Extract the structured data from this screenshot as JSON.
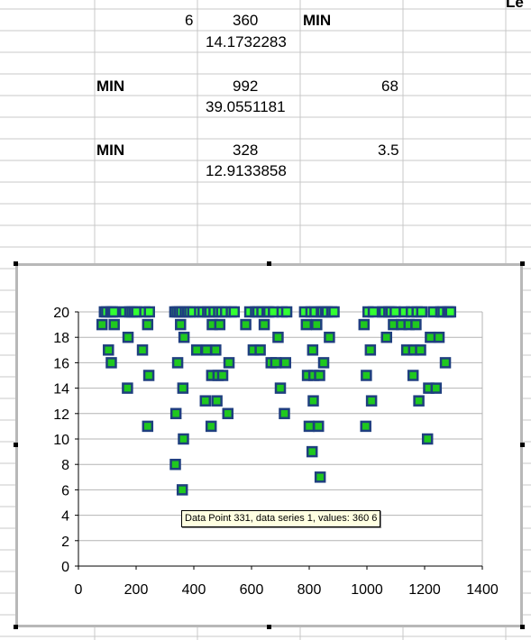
{
  "spreadsheet": {
    "header_partial": "Le",
    "cells": [
      {
        "id": "r1c2",
        "text": "6",
        "bold": false
      },
      {
        "id": "r1c3",
        "text": "360",
        "bold": false
      },
      {
        "id": "r1c4",
        "text": "MIN",
        "bold": true
      },
      {
        "id": "r2c3",
        "text": "14.1732283",
        "bold": false
      },
      {
        "id": "r5c1",
        "text": "MIN",
        "bold": true
      },
      {
        "id": "r5c3",
        "text": "992",
        "bold": false
      },
      {
        "id": "r5c4",
        "text": "68",
        "bold": false
      },
      {
        "id": "r6c3",
        "text": "39.0551181",
        "bold": false
      },
      {
        "id": "r9c1",
        "text": "MIN",
        "bold": true
      },
      {
        "id": "r9c3",
        "text": "328",
        "bold": false
      },
      {
        "id": "r9c4",
        "text": "3.5",
        "bold": false
      },
      {
        "id": "r10c3",
        "text": "12.9133858",
        "bold": false
      }
    ]
  },
  "tooltip": {
    "text": "Data Point 331, data series 1, values: 360 6"
  },
  "colors": {
    "marker_fill": "#1fc81f",
    "marker_border": "#1f3f7f",
    "top_marker_fill": "#33ff33",
    "grid": "#b4b4b4",
    "cell_grid": "#c8c8c8"
  },
  "chart_data": {
    "type": "scatter",
    "title": "",
    "xlabel": "",
    "ylabel": "",
    "xlim": [
      0,
      1400
    ],
    "ylim": [
      0,
      20
    ],
    "xticks": [
      "0",
      "200",
      "400",
      "600",
      "800",
      "1000",
      "1200",
      "1400"
    ],
    "yticks": [
      "0",
      "2",
      "4",
      "6",
      "8",
      "10",
      "12",
      "14",
      "16",
      "18",
      "20"
    ],
    "grid": "horizontal",
    "series": [
      {
        "points": [
          [
            82,
            19
          ],
          [
            90,
            20
          ],
          [
            98,
            20
          ],
          [
            104,
            17
          ],
          [
            112,
            20
          ],
          [
            114,
            16
          ],
          [
            118,
            20
          ],
          [
            122,
            20
          ],
          [
            124,
            19
          ],
          [
            160,
            20
          ],
          [
            170,
            14
          ],
          [
            172,
            18
          ],
          [
            178,
            20
          ],
          [
            186,
            20
          ],
          [
            194,
            20
          ],
          [
            202,
            20
          ],
          [
            222,
            17
          ],
          [
            230,
            20
          ],
          [
            240,
            11
          ],
          [
            244,
            15
          ],
          [
            246,
            20
          ],
          [
            240,
            19
          ],
          [
            334,
            20
          ],
          [
            338,
            12
          ],
          [
            336,
            8
          ],
          [
            342,
            20
          ],
          [
            344,
            16
          ],
          [
            350,
            20
          ],
          [
            354,
            19
          ],
          [
            358,
            20
          ],
          [
            360,
            6
          ],
          [
            362,
            14
          ],
          [
            364,
            10
          ],
          [
            366,
            18
          ],
          [
            370,
            20
          ],
          [
            378,
            20
          ],
          [
            386,
            20
          ],
          [
            396,
            20
          ],
          [
            410,
            17
          ],
          [
            420,
            20
          ],
          [
            432,
            20
          ],
          [
            440,
            13
          ],
          [
            444,
            17
          ],
          [
            448,
            20
          ],
          [
            456,
            20
          ],
          [
            460,
            11
          ],
          [
            462,
            15
          ],
          [
            464,
            19
          ],
          [
            470,
            20
          ],
          [
            476,
            17
          ],
          [
            480,
            13
          ],
          [
            484,
            15
          ],
          [
            486,
            20
          ],
          [
            490,
            19
          ],
          [
            496,
            20
          ],
          [
            500,
            15
          ],
          [
            510,
            20
          ],
          [
            518,
            12
          ],
          [
            522,
            16
          ],
          [
            530,
            20
          ],
          [
            540,
            20
          ],
          [
            580,
            19
          ],
          [
            594,
            20
          ],
          [
            606,
            17
          ],
          [
            614,
            20
          ],
          [
            622,
            20
          ],
          [
            630,
            17
          ],
          [
            636,
            20
          ],
          [
            644,
            19
          ],
          [
            654,
            20
          ],
          [
            660,
            20
          ],
          [
            668,
            16
          ],
          [
            676,
            20
          ],
          [
            684,
            16
          ],
          [
            692,
            18
          ],
          [
            700,
            14
          ],
          [
            706,
            20
          ],
          [
            714,
            12
          ],
          [
            718,
            16
          ],
          [
            722,
            20
          ],
          [
            784,
            20
          ],
          [
            790,
            19
          ],
          [
            794,
            15
          ],
          [
            800,
            11
          ],
          [
            806,
            20
          ],
          [
            810,
            9
          ],
          [
            812,
            17
          ],
          [
            814,
            13
          ],
          [
            816,
            15
          ],
          [
            820,
            20
          ],
          [
            826,
            19
          ],
          [
            832,
            11
          ],
          [
            836,
            15
          ],
          [
            838,
            7
          ],
          [
            842,
            20
          ],
          [
            846,
            20
          ],
          [
            850,
            16
          ],
          [
            856,
            20
          ],
          [
            862,
            20
          ],
          [
            870,
            18
          ],
          [
            878,
            20
          ],
          [
            886,
            20
          ],
          [
            990,
            19
          ],
          [
            996,
            11
          ],
          [
            998,
            15
          ],
          [
            1004,
            20
          ],
          [
            1012,
            17
          ],
          [
            1016,
            13
          ],
          [
            1022,
            20
          ],
          [
            1054,
            20
          ],
          [
            1060,
            20
          ],
          [
            1068,
            18
          ],
          [
            1076,
            20
          ],
          [
            1084,
            20
          ],
          [
            1092,
            19
          ],
          [
            1098,
            20
          ],
          [
            1120,
            19
          ],
          [
            1130,
            20
          ],
          [
            1138,
            17
          ],
          [
            1146,
            19
          ],
          [
            1154,
            20
          ],
          [
            1160,
            15
          ],
          [
            1162,
            17
          ],
          [
            1170,
            19
          ],
          [
            1174,
            20
          ],
          [
            1180,
            13
          ],
          [
            1186,
            17
          ],
          [
            1190,
            20
          ],
          [
            1210,
            10
          ],
          [
            1214,
            14
          ],
          [
            1220,
            18
          ],
          [
            1230,
            20
          ],
          [
            1240,
            14
          ],
          [
            1250,
            18
          ],
          [
            1256,
            20
          ],
          [
            1264,
            20
          ],
          [
            1272,
            16
          ],
          [
            1280,
            20
          ],
          [
            1286,
            20
          ],
          [
            1290,
            20
          ]
        ]
      }
    ]
  }
}
